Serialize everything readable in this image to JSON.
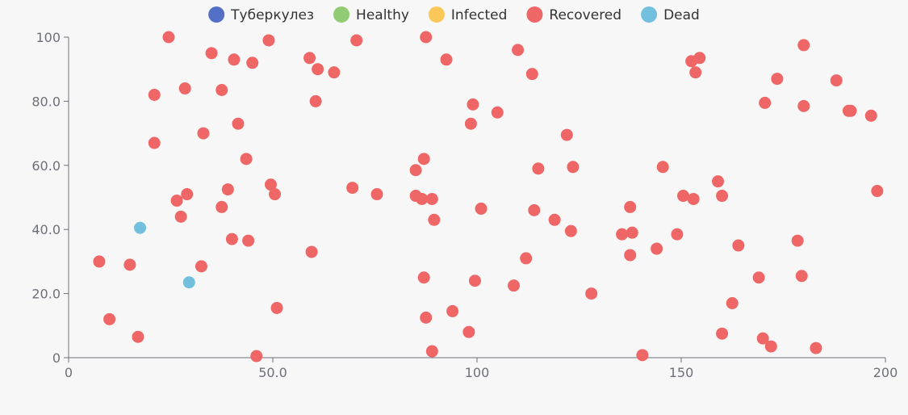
{
  "chart_data": {
    "type": "scatter",
    "title": "",
    "xlabel": "",
    "ylabel": "",
    "xlim": [
      0,
      200
    ],
    "ylim": [
      0,
      100
    ],
    "x_ticks": [
      "0",
      "50.0",
      "100",
      "150",
      "200"
    ],
    "y_ticks": [
      "0",
      "20.0",
      "40.0",
      "60.0",
      "80.0",
      "100"
    ],
    "legend_position": "top-center",
    "grid": false,
    "series": [
      {
        "name": "Туберкулез",
        "color": "#5470c6",
        "points": []
      },
      {
        "name": "Healthy",
        "color": "#91cc75",
        "points": []
      },
      {
        "name": "Infected",
        "color": "#fac858",
        "points": []
      },
      {
        "name": "Recovered",
        "color": "#ee6666",
        "points": [
          [
            7.5,
            30
          ],
          [
            10,
            12
          ],
          [
            15,
            29
          ],
          [
            17,
            6.5
          ],
          [
            21,
            67
          ],
          [
            21,
            82
          ],
          [
            24.5,
            100
          ],
          [
            26.5,
            49
          ],
          [
            27.5,
            44
          ],
          [
            28.5,
            84
          ],
          [
            29,
            51
          ],
          [
            32.5,
            28.5
          ],
          [
            33,
            70
          ],
          [
            35,
            95
          ],
          [
            37.5,
            83.5
          ],
          [
            37.5,
            47
          ],
          [
            39,
            52.5
          ],
          [
            40,
            37
          ],
          [
            40.5,
            93
          ],
          [
            41.5,
            73
          ],
          [
            43.5,
            62
          ],
          [
            44,
            36.5
          ],
          [
            45,
            92
          ],
          [
            46,
            0.5
          ],
          [
            49,
            99
          ],
          [
            49.5,
            54
          ],
          [
            50.5,
            51
          ],
          [
            51,
            15.5
          ],
          [
            59,
            93.5
          ],
          [
            59.5,
            33
          ],
          [
            60.5,
            80
          ],
          [
            61,
            90
          ],
          [
            65,
            89
          ],
          [
            69.5,
            53
          ],
          [
            70.5,
            99
          ],
          [
            75.5,
            51
          ],
          [
            85,
            58.5
          ],
          [
            85,
            50.5
          ],
          [
            86.5,
            49.5
          ],
          [
            87,
            62
          ],
          [
            87,
            25
          ],
          [
            87.5,
            12.5
          ],
          [
            87.5,
            100
          ],
          [
            89,
            49.5
          ],
          [
            89,
            2
          ],
          [
            89.5,
            43
          ],
          [
            92.5,
            93
          ],
          [
            94,
            14.5
          ],
          [
            98,
            8
          ],
          [
            98.5,
            73
          ],
          [
            99,
            79
          ],
          [
            99.5,
            24
          ],
          [
            101,
            46.5
          ],
          [
            105,
            76.5
          ],
          [
            109,
            22.5
          ],
          [
            110,
            96
          ],
          [
            112,
            31
          ],
          [
            113.5,
            88.5
          ],
          [
            114,
            46
          ],
          [
            115,
            59
          ],
          [
            119,
            43
          ],
          [
            122,
            69.5
          ],
          [
            123,
            39.5
          ],
          [
            123.5,
            59.5
          ],
          [
            128,
            20
          ],
          [
            135.5,
            38.5
          ],
          [
            137.5,
            47
          ],
          [
            137.5,
            32
          ],
          [
            138,
            39
          ],
          [
            140.5,
            0.8
          ],
          [
            144,
            34
          ],
          [
            145.5,
            59.5
          ],
          [
            149,
            38.5
          ],
          [
            150.5,
            50.5
          ],
          [
            152.5,
            92.5
          ],
          [
            153,
            49.5
          ],
          [
            153.5,
            89
          ],
          [
            154.5,
            93.5
          ],
          [
            159,
            55
          ],
          [
            160,
            50.5
          ],
          [
            160,
            7.5
          ],
          [
            162.5,
            17
          ],
          [
            164,
            35
          ],
          [
            169,
            25
          ],
          [
            170,
            6
          ],
          [
            170.5,
            79.5
          ],
          [
            172,
            3.5
          ],
          [
            173.5,
            87
          ],
          [
            178.5,
            36.5
          ],
          [
            179.5,
            25.5
          ],
          [
            180,
            78.5
          ],
          [
            180,
            97.5
          ],
          [
            183,
            3
          ],
          [
            188,
            86.5
          ],
          [
            191,
            77
          ],
          [
            191.5,
            77
          ],
          [
            196.5,
            75.5
          ],
          [
            198,
            52
          ]
        ]
      },
      {
        "name": "Dead",
        "color": "#73c0de",
        "points": [
          [
            17.5,
            40.5
          ],
          [
            29.5,
            23.5
          ]
        ]
      }
    ]
  }
}
